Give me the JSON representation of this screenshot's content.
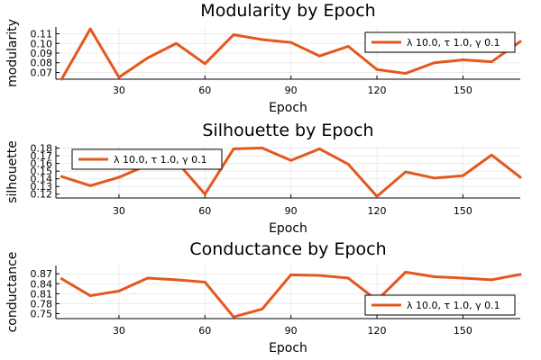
{
  "chart_data": [
    {
      "type": "line",
      "title": "Modularity by Epoch",
      "xlabel": "Epoch",
      "ylabel": "modularity",
      "xlim": [
        8,
        170
      ],
      "ylim": [
        0.063,
        0.117
      ],
      "xticks": [
        30,
        60,
        90,
        120,
        150
      ],
      "yticks": [
        0.07,
        0.08,
        0.09,
        0.1,
        0.11
      ],
      "ytick_labels": [
        "0.07",
        "0.08",
        "0.09",
        "0.10",
        "0.11"
      ],
      "grid": true,
      "legend_position": "top-right",
      "series": [
        {
          "name": "λ 10.0, τ 1.0, γ 0.1",
          "color": "#e4571e",
          "x": [
            10,
            20,
            30,
            40,
            50,
            60,
            70,
            80,
            90,
            100,
            110,
            120,
            130,
            140,
            150,
            160,
            170
          ],
          "y": [
            0.063,
            0.115,
            0.065,
            0.085,
            0.1,
            0.079,
            0.109,
            0.104,
            0.101,
            0.087,
            0.097,
            0.073,
            0.069,
            0.08,
            0.083,
            0.081,
            0.102
          ]
        }
      ]
    },
    {
      "type": "line",
      "title": "Silhouette by Epoch",
      "xlabel": "Epoch",
      "ylabel": "silhouette",
      "xlim": [
        8,
        170
      ],
      "ylim": [
        0.115,
        0.183
      ],
      "xticks": [
        30,
        60,
        90,
        120,
        150
      ],
      "yticks": [
        0.12,
        0.13,
        0.14,
        0.15,
        0.16,
        0.17,
        0.18
      ],
      "ytick_labels": [
        "0.12",
        "0.13",
        "0.14",
        "0.15",
        "0.16",
        "0.17",
        "0.18"
      ],
      "grid": true,
      "legend_position": "top-left",
      "series": [
        {
          "name": "λ 10.0, τ 1.0, γ 0.1",
          "color": "#e4571e",
          "x": [
            10,
            20,
            30,
            40,
            50,
            60,
            70,
            80,
            90,
            100,
            110,
            120,
            130,
            140,
            150,
            160,
            170
          ],
          "y": [
            0.143,
            0.131,
            0.142,
            0.158,
            0.163,
            0.12,
            0.179,
            0.18,
            0.164,
            0.179,
            0.159,
            0.117,
            0.149,
            0.141,
            0.144,
            0.171,
            0.142
          ]
        }
      ]
    },
    {
      "type": "line",
      "title": "Conductance by Epoch",
      "xlabel": "Epoch",
      "ylabel": "conductance",
      "xlim": [
        8,
        170
      ],
      "ylim": [
        0.735,
        0.895
      ],
      "xticks": [
        30,
        60,
        90,
        120,
        150
      ],
      "yticks": [
        0.75,
        0.78,
        0.81,
        0.84,
        0.87
      ],
      "ytick_labels": [
        "0.75",
        "0.78",
        "0.81",
        "0.84",
        "0.87"
      ],
      "grid": true,
      "legend_position": "bottom-right",
      "series": [
        {
          "name": "λ 10.0, τ 1.0, γ 0.1",
          "color": "#e4571e",
          "x": [
            10,
            20,
            30,
            40,
            50,
            60,
            70,
            80,
            90,
            100,
            110,
            120,
            130,
            140,
            150,
            160,
            170
          ],
          "y": [
            0.855,
            0.804,
            0.818,
            0.857,
            0.852,
            0.845,
            0.74,
            0.764,
            0.867,
            0.865,
            0.857,
            0.79,
            0.875,
            0.861,
            0.857,
            0.852,
            0.868
          ]
        }
      ]
    }
  ]
}
